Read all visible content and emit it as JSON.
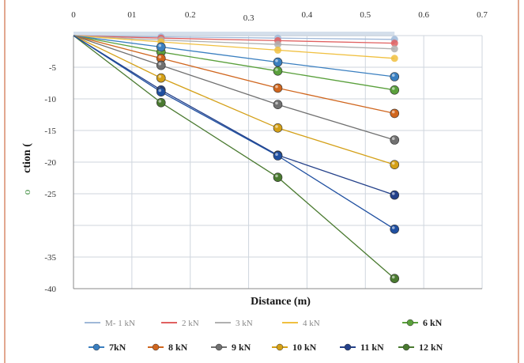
{
  "chart_data": {
    "type": "line",
    "xlabel": "Distance (m)",
    "ylabel": "ction (",
    "ylabel_glyph": "o",
    "xlim": [
      0,
      0.7
    ],
    "ylim": [
      -40,
      0
    ],
    "x_ticks": [
      "0",
      "01",
      "0.2",
      "0.3",
      "0.4",
      "0.5",
      "0.6",
      "0.7"
    ],
    "y_ticks": [
      "-5",
      "-10",
      "-15",
      "-20",
      "-25",
      "-35",
      "-40"
    ],
    "x": [
      0,
      0.15,
      0.35,
      0.55
    ],
    "series": [
      {
        "name": "M- 1 kN",
        "legend_row": 1,
        "color": "#9fb8d8",
        "marker": false,
        "values": [
          0,
          -0.2,
          -0.4,
          -0.6
        ]
      },
      {
        "name": "2 kN",
        "legend_row": 1,
        "color": "#e06060",
        "marker": false,
        "values": [
          0,
          -0.4,
          -0.8,
          -1.2
        ]
      },
      {
        "name": "3 kN",
        "legend_row": 1,
        "color": "#b0b0b0",
        "marker": false,
        "values": [
          0,
          -0.7,
          -1.4,
          -2.1
        ]
      },
      {
        "name": "4 kN",
        "legend_row": 1,
        "color": "#f0c040",
        "marker": false,
        "values": [
          0,
          -1.0,
          -2.3,
          -3.6
        ]
      },
      {
        "name": "6 kN",
        "legend_row": 1,
        "color": "#5aa03c",
        "marker": true,
        "values": [
          0,
          -2.6,
          -5.6,
          -8.6
        ]
      },
      {
        "name": "7kN",
        "legend_row": 2,
        "color": "#3a7fc0",
        "marker": true,
        "values": [
          0,
          -1.8,
          -4.2,
          -6.5
        ]
      },
      {
        "name": "8 kN",
        "legend_row": 2,
        "color": "#d0661e",
        "marker": true,
        "values": [
          0,
          -3.6,
          -8.3,
          -12.3
        ]
      },
      {
        "name": "9 kN",
        "legend_row": 2,
        "color": "#707070",
        "marker": true,
        "values": [
          0,
          -4.7,
          -10.9,
          -16.5
        ]
      },
      {
        "name": "10 kN",
        "legend_row": 2,
        "color": "#d4a017",
        "marker": true,
        "values": [
          0,
          -6.7,
          -14.6,
          -20.4
        ]
      },
      {
        "name": "11 kN",
        "legend_row": 2,
        "color": "#24418a",
        "marker": true,
        "values": [
          0,
          -8.6,
          -18.9,
          -25.2
        ]
      },
      {
        "name": "12 kN",
        "legend_row": 2,
        "color": "#4a7a30",
        "marker": true,
        "values": [
          0,
          -10.6,
          -22.4,
          -38.4
        ]
      }
    ],
    "extra_series_points": [
      {
        "color": "#1f4fa0",
        "values": [
          0,
          -8.9,
          -19.0,
          -30.6
        ]
      }
    ],
    "grid": true,
    "legend_position": "bottom"
  },
  "colors": {
    "frame_border": "#d98a6a",
    "plot_background": "#ffffff",
    "grid": "#cfd6de",
    "top_band": "#c9d7e6"
  }
}
